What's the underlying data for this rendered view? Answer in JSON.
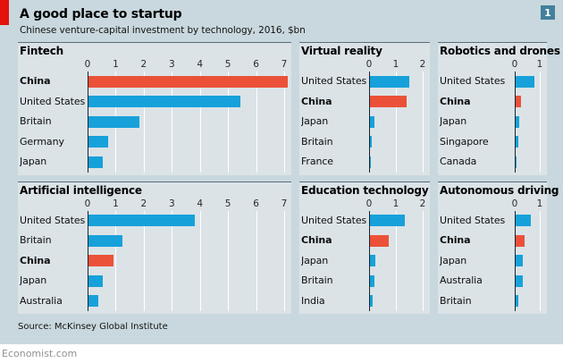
{
  "header": {
    "title": "A good place to startup",
    "subtitle": "Chinese venture-capital investment by technology, 2016, $bn",
    "index_badge": "1"
  },
  "footer": {
    "source": "Source: McKinsey Global Institute",
    "site": "Economist.com"
  },
  "colors": {
    "page_bg": "#c9d8de",
    "panel_bg": "#dbe3e7",
    "bar_blue": "#17a1da",
    "bar_red": "#eb5138",
    "accent_red": "#e3120b",
    "badge_bg": "#44809b",
    "grid_white": "#ffffff"
  },
  "highlight_category": "China",
  "chart_data": [
    {
      "type": "bar",
      "title": "Fintech",
      "axis_max": 7,
      "ticks": [
        0,
        1,
        2,
        3,
        4,
        5,
        6,
        7
      ],
      "categories": [
        "China",
        "United States",
        "Britain",
        "Germany",
        "Japan"
      ],
      "values": [
        7.1,
        5.4,
        1.8,
        0.7,
        0.5
      ]
    },
    {
      "type": "bar",
      "title": "Virtual reality",
      "axis_max": 2,
      "ticks": [
        0,
        1,
        2
      ],
      "categories": [
        "United States",
        "China",
        "Japan",
        "Britain",
        "France"
      ],
      "values": [
        1.45,
        1.35,
        0.15,
        0.08,
        0.03
      ]
    },
    {
      "type": "bar",
      "title": "Robotics and drones",
      "axis_max": 1,
      "ticks": [
        0,
        1
      ],
      "categories": [
        "United States",
        "China",
        "Japan",
        "Singapore",
        "Canada"
      ],
      "values": [
        0.75,
        0.2,
        0.15,
        0.12,
        0.05
      ]
    },
    {
      "type": "bar",
      "title": "Artificial intelligence",
      "axis_max": 7,
      "ticks": [
        0,
        1,
        2,
        3,
        4,
        5,
        6,
        7
      ],
      "categories": [
        "United States",
        "Britain",
        "China",
        "Japan",
        "Australia"
      ],
      "values": [
        3.8,
        1.2,
        0.9,
        0.5,
        0.35
      ]
    },
    {
      "type": "bar",
      "title": "Education technology",
      "axis_max": 2,
      "ticks": [
        0,
        1,
        2
      ],
      "categories": [
        "United States",
        "China",
        "Japan",
        "Britain",
        "India"
      ],
      "values": [
        1.3,
        0.7,
        0.2,
        0.15,
        0.1
      ]
    },
    {
      "type": "bar",
      "title": "Autonomous driving",
      "axis_max": 1,
      "ticks": [
        0,
        1
      ],
      "categories": [
        "United States",
        "China",
        "Japan",
        "Australia",
        "Britain"
      ],
      "values": [
        0.6,
        0.35,
        0.3,
        0.28,
        0.12
      ]
    }
  ]
}
